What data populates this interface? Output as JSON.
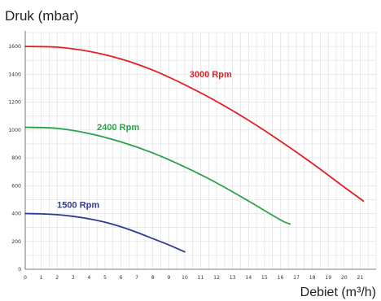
{
  "chart_data": {
    "type": "line",
    "ylabel": "Druk (mbar)",
    "xlabel": "Debiet (m³/h)",
    "xlim": [
      0,
      22
    ],
    "ylim": [
      0,
      1700
    ],
    "xticks": [
      "0",
      "1",
      "2",
      "3",
      "4",
      "5",
      "6",
      "7",
      "8",
      "9",
      "10",
      "11",
      "12",
      "13",
      "14",
      "15",
      "16",
      "17",
      "18",
      "19",
      "20",
      "21"
    ],
    "yticks": [
      "0",
      "200",
      "400",
      "600",
      "800",
      "1000",
      "1200",
      "1400",
      "1600"
    ],
    "grid": true,
    "series": [
      {
        "name": "1500 Rpm",
        "color": "#2e3a91",
        "x": [
          0,
          1,
          2,
          3,
          4,
          5,
          6,
          7,
          8,
          9,
          10
        ],
        "y": [
          400,
          398,
          392,
          380,
          362,
          338,
          305,
          265,
          220,
          175,
          125
        ]
      },
      {
        "name": "2400 Rpm",
        "color": "#27a34a",
        "x": [
          0,
          2,
          4,
          6,
          8,
          10,
          12,
          14,
          16,
          16.6
        ],
        "y": [
          1020,
          1012,
          975,
          915,
          835,
          735,
          620,
          490,
          355,
          325
        ]
      },
      {
        "name": "3000 Rpm",
        "color": "#e31e24",
        "x": [
          0,
          2,
          4,
          6,
          8,
          10,
          12,
          14,
          16,
          18,
          20,
          21.2
        ],
        "y": [
          1600,
          1595,
          1565,
          1510,
          1430,
          1325,
          1205,
          1070,
          920,
          760,
          590,
          490
        ]
      }
    ]
  }
}
